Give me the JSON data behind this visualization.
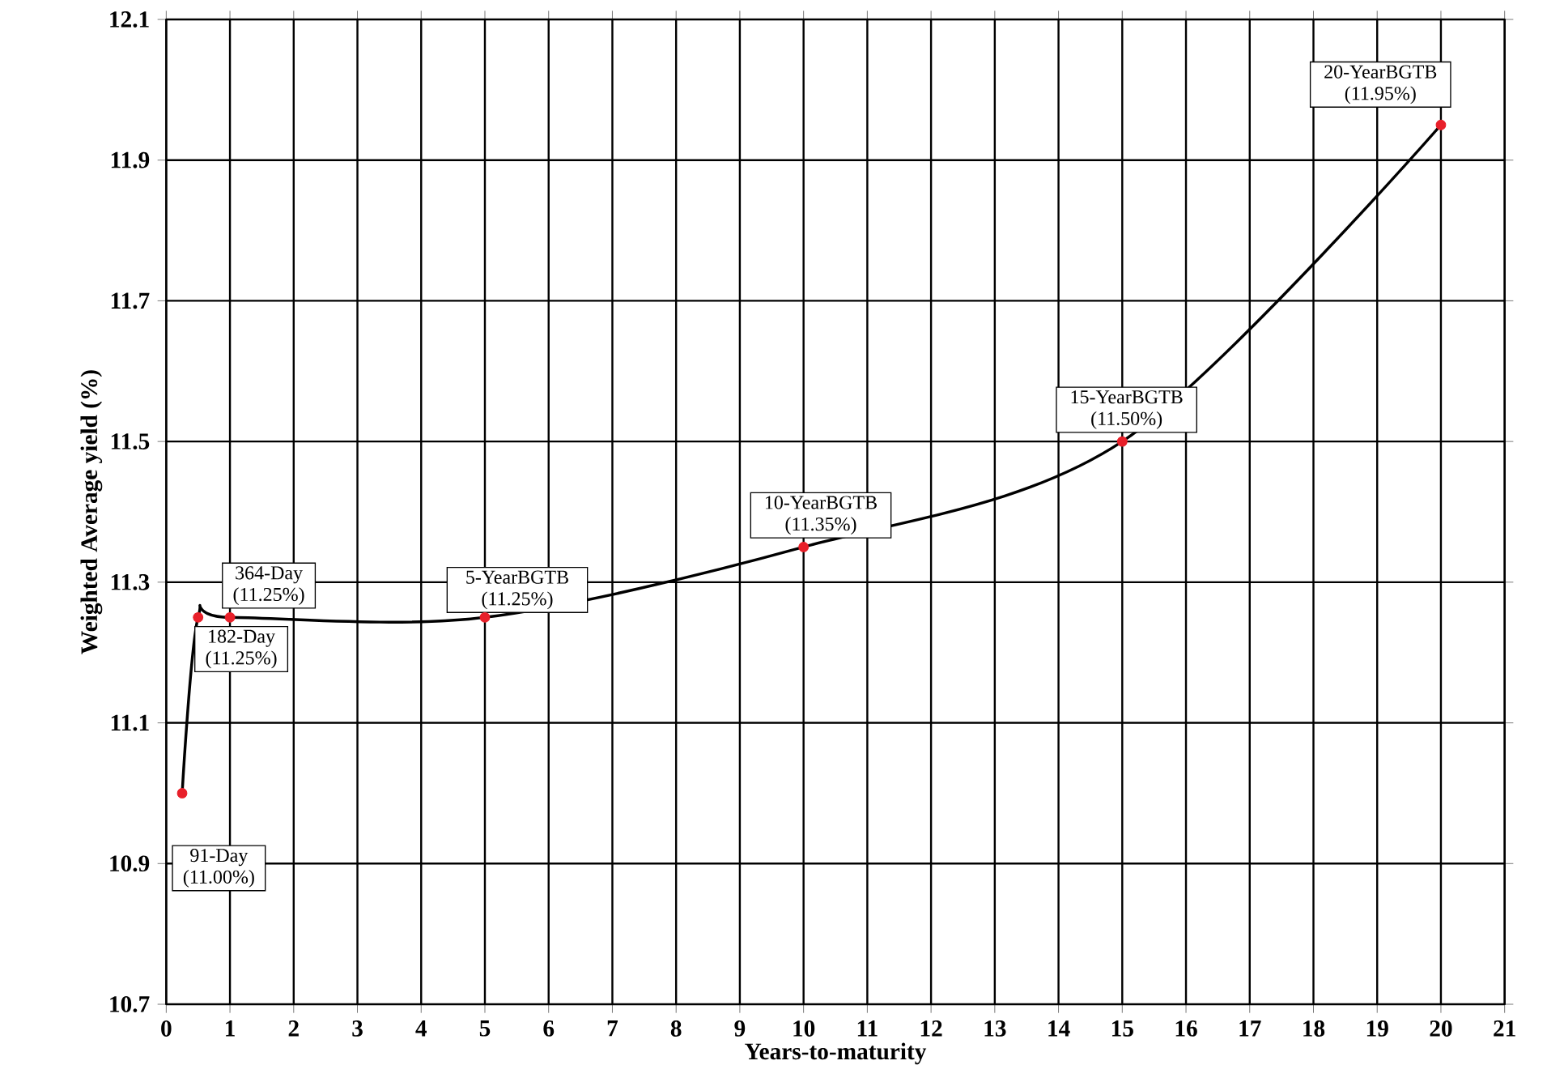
{
  "chart_data": {
    "type": "line",
    "xlabel": "Years-to-maturity",
    "ylabel": "Weighted Average yield (%)",
    "x": [
      0.25,
      0.5,
      1,
      5,
      10,
      15,
      20
    ],
    "series": [
      {
        "color": "#000000",
        "colors": [
          "#e8202a",
          "#e8202a",
          "#e8202a",
          "#e8202a",
          "#e8202a",
          "#e8202a",
          "#e8202a"
        ],
        "values": [
          11.0,
          11.25,
          11.25,
          11.25,
          11.35,
          11.5,
          11.95
        ]
      }
    ],
    "xlim": [
      0,
      21
    ],
    "xticks": [
      0,
      1,
      2,
      3,
      4,
      5,
      6,
      7,
      8,
      9,
      10,
      11,
      12,
      13,
      14,
      15,
      16,
      17,
      18,
      19,
      20,
      21
    ],
    "ylim": [
      10.7,
      12.1
    ],
    "yticks": [
      10.7,
      10.9,
      11.1,
      11.3,
      11.5,
      11.7,
      11.9,
      12.1
    ],
    "grid": true,
    "marker": "circle",
    "line_style": "solid",
    "annotations": [
      {
        "text": "91-Day (11.00%)",
        "x": 0.25,
        "y": 11.0
      },
      {
        "text": "182-Day (11.25%)",
        "x": 0.5,
        "y": 11.25
      },
      {
        "text": "364-Day (11.25%)",
        "x": 1,
        "y": 11.25
      },
      {
        "text": "5-YearBGTB (11.25%)",
        "x": 5,
        "y": 11.25
      },
      {
        "text": "10-YearBGTB (11.35%)",
        "x": 10,
        "y": 11.35
      },
      {
        "text": "15-YearBGTB (11.50%)",
        "x": 15,
        "y": 11.5
      },
      {
        "text": "20-YearBGTB (11.95%)",
        "x": 20,
        "y": 11.95
      }
    ]
  }
}
